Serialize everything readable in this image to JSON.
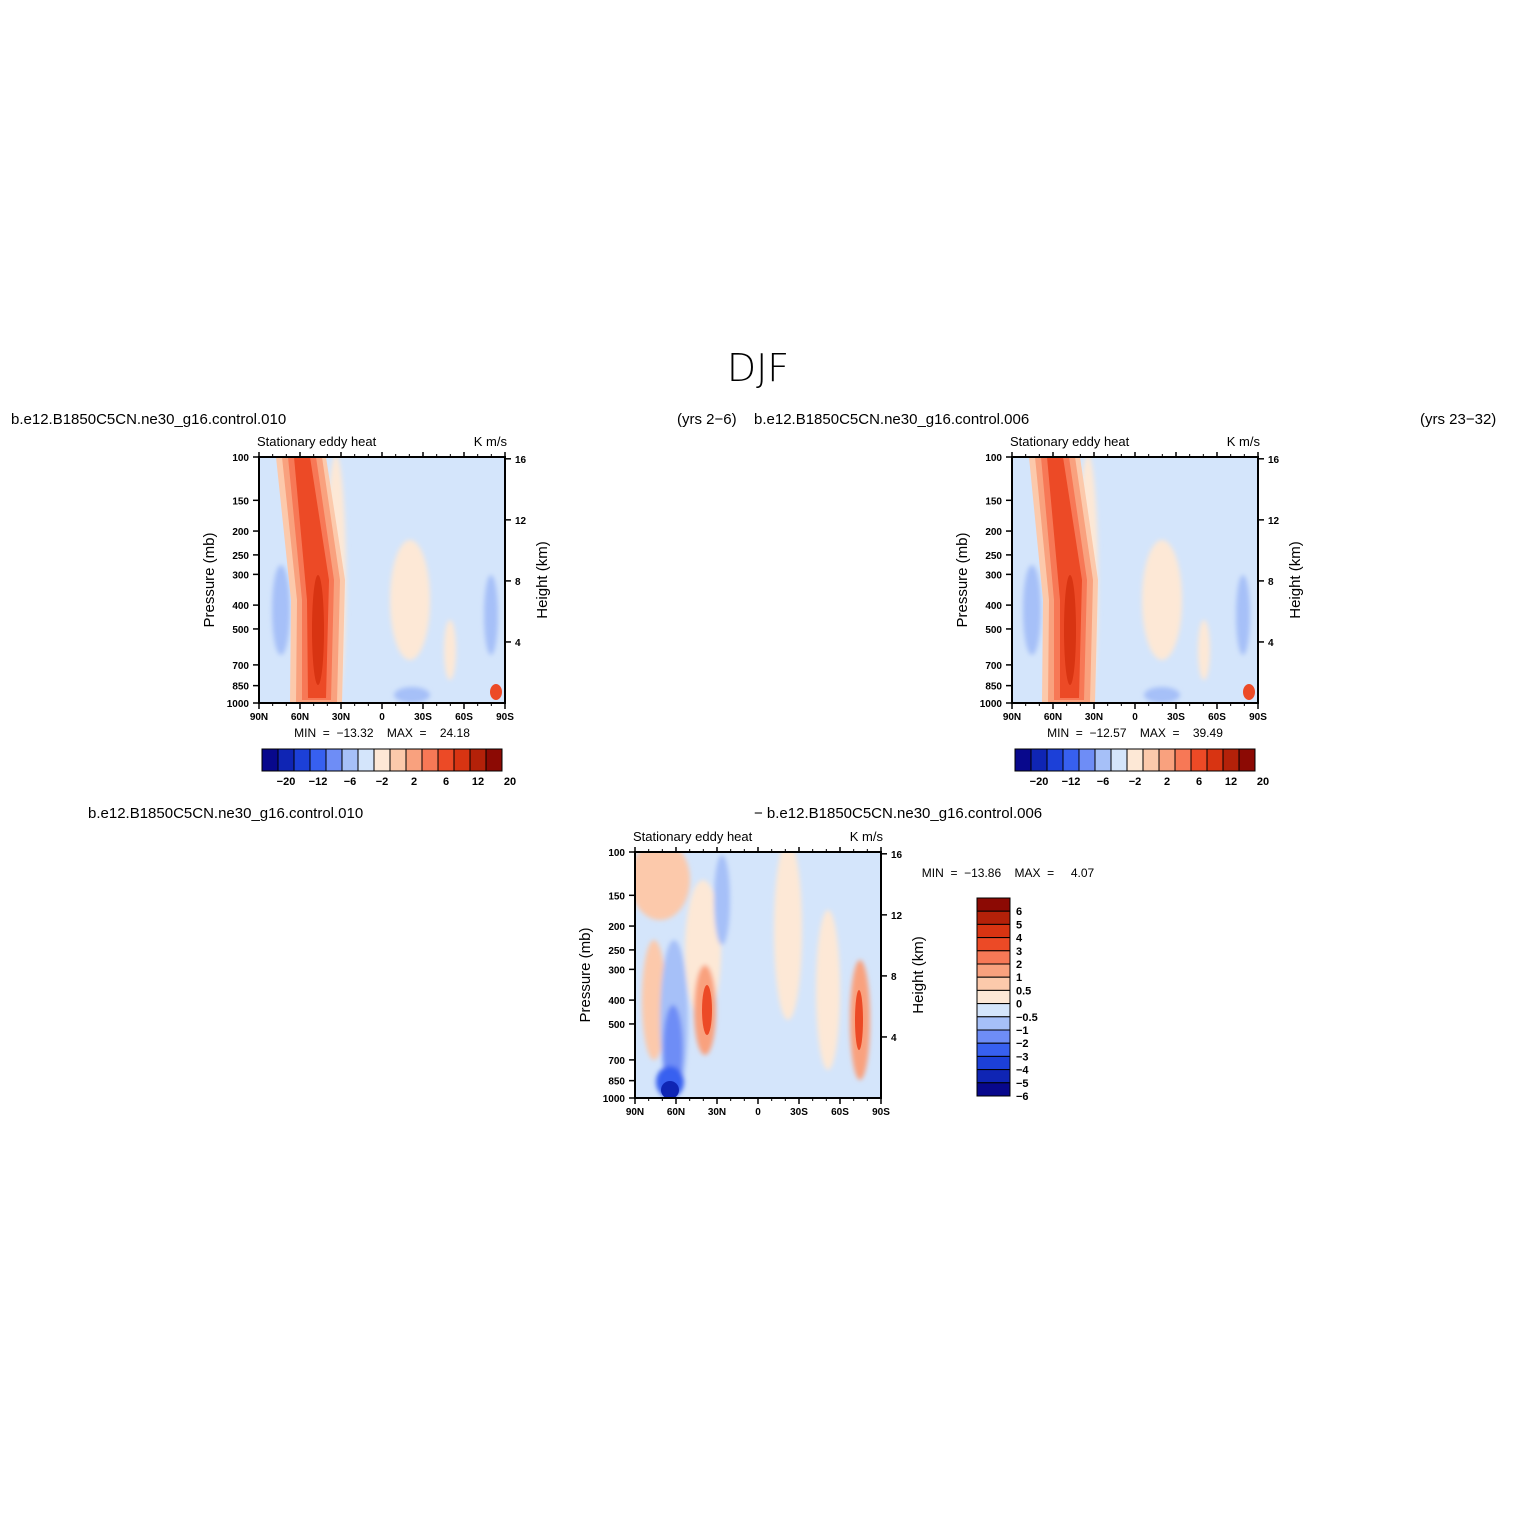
{
  "figure": {
    "title": "DJF"
  },
  "colors": {
    "ramp": [
      "#08088c",
      "#0f25b4",
      "#1c40d8",
      "#3760f0",
      "#6e8df6",
      "#a6c0f8",
      "#d4e5fb",
      "#fde8d6",
      "#fcc9ab",
      "#f9a17e",
      "#f77856",
      "#ec4a26",
      "#d83412",
      "#b42109",
      "#8c0a04"
    ]
  },
  "panels": [
    {
      "left_title": "b.e12.B1850C5CN.ne30_g16.control.010",
      "right_title": "(yrs 2−6)",
      "subtitle_left": "Stationary  eddy  heat",
      "subtitle_right": "K  m/s",
      "stats": "MIN  =  −13.32    MAX  =    24.18"
    },
    {
      "left_title": "b.e12.B1850C5CN.ne30_g16.control.006",
      "right_title": "(yrs 23−32)",
      "subtitle_left": "Stationary  eddy  heat",
      "subtitle_right": "K  m/s",
      "stats": "MIN  =  −12.57    MAX  =    39.49"
    },
    {
      "left_title": "b.e12.B1850C5CN.ne30_g16.control.010",
      "right_title": "−  b.e12.B1850C5CN.ne30_g16.control.006",
      "subtitle_left": "Stationary  eddy  heat",
      "subtitle_right": "K  m/s",
      "stats": "MIN  =  −13.86    MAX  =     4.07"
    }
  ],
  "axes": {
    "ylabel": "Pressure  (mb)",
    "ylabel_right": "Height  (km)",
    "pressure_ticks": [
      "100",
      "150",
      "200",
      "250",
      "300",
      "400",
      "500",
      "700",
      "850",
      "1000"
    ],
    "height_ticks": [
      "16",
      "12",
      "8",
      "4"
    ],
    "lat_ticks": [
      "90N",
      "60N",
      "30N",
      "0",
      "30S",
      "60S",
      "90S"
    ]
  },
  "colorbars": {
    "main_labels": [
      "−20",
      "−12",
      "−6",
      "−2",
      "2",
      "6",
      "12",
      "20"
    ],
    "diff_labels": [
      "6",
      "5",
      "4",
      "3",
      "2",
      "1",
      "0.5",
      "0",
      "−0.5",
      "−1",
      "−2",
      "−3",
      "−4",
      "−5",
      "−6"
    ]
  },
  "chart_data": [
    {
      "type": "heatmap",
      "title": "Stationary  eddy  heat",
      "units": "K  m/s",
      "xlabel": "",
      "ylabel": "Pressure  (mb)",
      "x": [
        "90N",
        "60N",
        "30N",
        "0",
        "30S",
        "60S",
        "90S"
      ],
      "y": [
        100,
        150,
        200,
        250,
        300,
        400,
        500,
        700,
        850,
        1000
      ],
      "levels": [
        -20,
        -16,
        -12,
        -9,
        -6,
        -4,
        -2,
        0,
        2,
        4,
        6,
        9,
        12,
        16,
        20
      ],
      "min": -13.32,
      "max": 24.18
    },
    {
      "type": "heatmap",
      "title": "Stationary  eddy  heat",
      "units": "K  m/s",
      "xlabel": "",
      "ylabel": "Pressure  (mb)",
      "x": [
        "90N",
        "60N",
        "30N",
        "0",
        "30S",
        "60S",
        "90S"
      ],
      "y": [
        100,
        150,
        200,
        250,
        300,
        400,
        500,
        700,
        850,
        1000
      ],
      "levels": [
        -20,
        -16,
        -12,
        -9,
        -6,
        -4,
        -2,
        0,
        2,
        4,
        6,
        9,
        12,
        16,
        20
      ],
      "min": -12.57,
      "max": 39.49
    },
    {
      "type": "heatmap",
      "title": "Stationary  eddy  heat",
      "units": "K  m/s",
      "xlabel": "",
      "ylabel": "Pressure  (mb)",
      "x": [
        "90N",
        "60N",
        "30N",
        "0",
        "30S",
        "60S",
        "90S"
      ],
      "y": [
        100,
        150,
        200,
        250,
        300,
        400,
        500,
        700,
        850,
        1000
      ],
      "levels": [
        -6,
        -5,
        -4,
        -3,
        -2,
        -1,
        -0.5,
        0,
        0.5,
        1,
        2,
        3,
        4,
        5,
        6
      ],
      "min": -13.86,
      "max": 4.07
    }
  ]
}
